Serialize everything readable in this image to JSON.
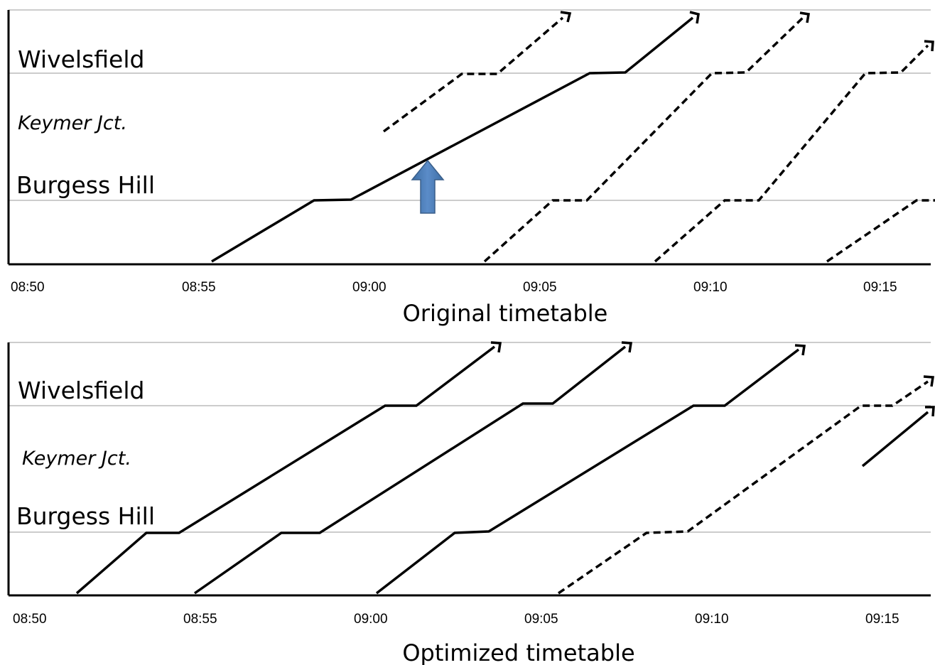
{
  "panels": [
    {
      "id": "original",
      "caption": "Original timetable",
      "stations": {
        "top": "Wivelsfield",
        "middle": "Keymer Jct.",
        "bottom": "Burgess Hill"
      },
      "ticks": [
        "08:50",
        "08:55",
        "09:00",
        "09:05",
        "09:10",
        "09:15"
      ],
      "highlight": {
        "type": "blue-up-arrow",
        "color": "#4f81bd"
      }
    },
    {
      "id": "optimized",
      "caption": "Optimized timetable",
      "stations": {
        "top": "Wivelsfield",
        "middle": "Keymer Jct.",
        "bottom": "Burgess Hill"
      },
      "ticks": [
        "08:50",
        "08:55",
        "09:00",
        "09:05",
        "09:10",
        "09:15"
      ]
    }
  ],
  "colors": {
    "line": "#000000",
    "gridline": "#9a9a9a",
    "highlight_arrow": "#4f81bd",
    "highlight_arrow_edge": "#3a5f8a"
  }
}
